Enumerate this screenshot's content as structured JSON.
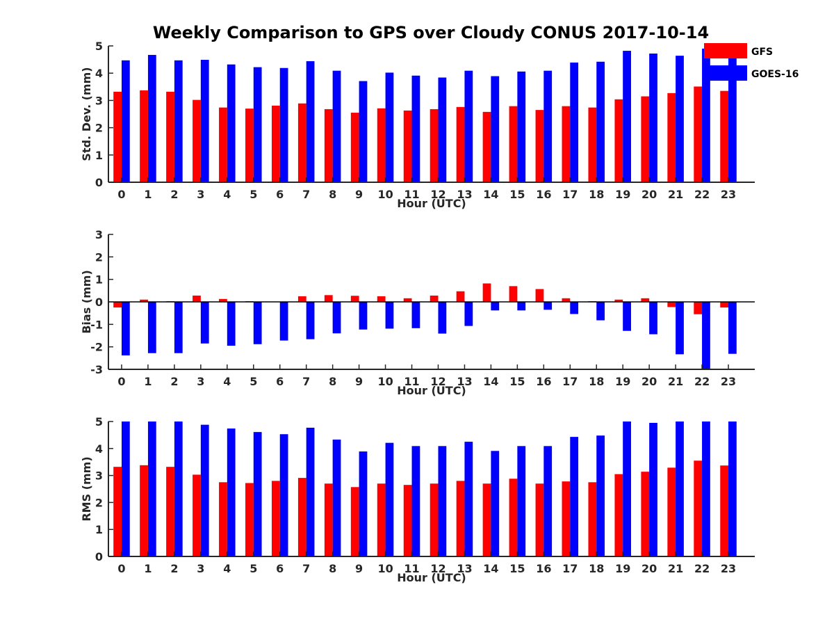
{
  "figure": {
    "title": "Weekly Comparison to GPS over Cloudy CONUS 2017-10-14",
    "colors": {
      "GFS": "#ff0000",
      "GOES-16": "#0000ff",
      "axis": "#262626"
    }
  },
  "legend": {
    "placement": "top-right",
    "entries": [
      "GFS",
      "GOES-16"
    ]
  },
  "chart_data": [
    {
      "type": "bar",
      "title": "Weekly Comparison to GPS over Cloudy CONUS 2017-10-14",
      "xlabel": "Hour (UTC)",
      "ylabel": "Std. Dev. (mm)",
      "ylim": [
        0,
        5
      ],
      "yticks": [
        0,
        1,
        2,
        3,
        4,
        5
      ],
      "categories": [
        "0",
        "1",
        "2",
        "3",
        "4",
        "5",
        "6",
        "7",
        "8",
        "9",
        "10",
        "11",
        "12",
        "13",
        "14",
        "15",
        "16",
        "17",
        "18",
        "19",
        "20",
        "21",
        "22",
        "23"
      ],
      "series": [
        {
          "name": "GFS",
          "values": [
            3.32,
            3.37,
            3.32,
            3.02,
            2.74,
            2.7,
            2.81,
            2.89,
            2.68,
            2.55,
            2.71,
            2.63,
            2.68,
            2.76,
            2.58,
            2.79,
            2.65,
            2.79,
            2.74,
            3.04,
            3.15,
            3.27,
            3.51,
            3.35
          ]
        },
        {
          "name": "GOES-16",
          "values": [
            4.47,
            4.67,
            4.47,
            4.49,
            4.32,
            4.22,
            4.19,
            4.44,
            4.09,
            3.71,
            4.02,
            3.91,
            3.84,
            4.09,
            3.89,
            4.06,
            4.09,
            4.39,
            4.42,
            4.82,
            4.72,
            4.64,
            4.9,
            4.6
          ]
        }
      ]
    },
    {
      "type": "bar",
      "xlabel": "Hour (UTC)",
      "ylabel": "Bias (mm)",
      "ylim": [
        -3,
        3
      ],
      "yticks": [
        -3,
        -2,
        -1,
        0,
        1,
        2,
        3
      ],
      "categories": [
        "0",
        "1",
        "2",
        "3",
        "4",
        "5",
        "6",
        "7",
        "8",
        "9",
        "10",
        "11",
        "12",
        "13",
        "14",
        "15",
        "16",
        "17",
        "18",
        "19",
        "20",
        "21",
        "22",
        "23"
      ],
      "series": [
        {
          "name": "GFS",
          "values": [
            -0.25,
            0.1,
            0.03,
            0.28,
            0.13,
            0.03,
            0.0,
            0.25,
            0.3,
            0.27,
            0.25,
            0.16,
            0.28,
            0.47,
            0.82,
            0.7,
            0.57,
            0.16,
            0.03,
            0.1,
            0.16,
            -0.23,
            -0.55,
            -0.25
          ]
        },
        {
          "name": "GOES-16",
          "values": [
            -2.38,
            -2.28,
            -2.28,
            -1.85,
            -1.95,
            -1.88,
            -1.72,
            -1.66,
            -1.4,
            -1.23,
            -1.19,
            -1.17,
            -1.41,
            -1.07,
            -0.38,
            -0.38,
            -0.35,
            -0.54,
            -0.82,
            -1.29,
            -1.44,
            -2.33,
            -3.0,
            -2.31
          ]
        }
      ]
    },
    {
      "type": "bar",
      "xlabel": "Hour (UTC)",
      "ylabel": "RMS (mm)",
      "ylim": [
        0,
        5
      ],
      "yticks": [
        0,
        1,
        2,
        3,
        4,
        5
      ],
      "categories": [
        "0",
        "1",
        "2",
        "3",
        "4",
        "5",
        "6",
        "7",
        "8",
        "9",
        "10",
        "11",
        "12",
        "13",
        "14",
        "15",
        "16",
        "17",
        "18",
        "19",
        "20",
        "21",
        "22",
        "23"
      ],
      "series": [
        {
          "name": "GFS",
          "values": [
            3.32,
            3.38,
            3.32,
            3.03,
            2.75,
            2.72,
            2.8,
            2.91,
            2.7,
            2.57,
            2.7,
            2.65,
            2.7,
            2.8,
            2.7,
            2.88,
            2.7,
            2.78,
            2.75,
            3.05,
            3.14,
            3.29,
            3.55,
            3.37
          ]
        },
        {
          "name": "GOES-16",
          "values": [
            5.0,
            5.0,
            5.0,
            4.88,
            4.74,
            4.61,
            4.53,
            4.77,
            4.33,
            3.89,
            4.21,
            4.09,
            4.09,
            4.25,
            3.91,
            4.09,
            4.09,
            4.43,
            4.48,
            5.0,
            4.95,
            5.0,
            5.0,
            5.0
          ]
        }
      ]
    }
  ]
}
